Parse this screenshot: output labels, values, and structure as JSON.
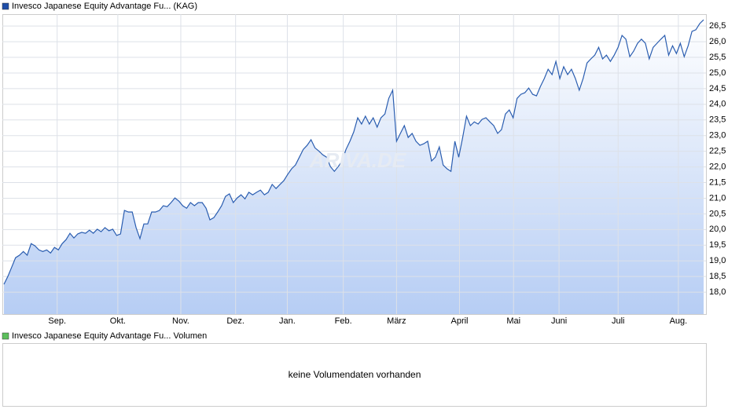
{
  "chart_data": {
    "type": "area-line",
    "legend": "Invesco Japanese Equity Advantage Fu... (KAG)",
    "watermark": "ARIVA.DE",
    "series": [
      {
        "name": "Invesco Japanese Equity Advantage Fu...",
        "color": "#2a5db0",
        "values": [
          18.25,
          18.5,
          18.8,
          19.1,
          19.18,
          19.3,
          19.18,
          19.55,
          19.48,
          19.35,
          19.3,
          19.35,
          19.25,
          19.43,
          19.35,
          19.55,
          19.68,
          19.88,
          19.73,
          19.86,
          19.91,
          19.88,
          19.98,
          19.88,
          20.01,
          19.93,
          20.06,
          19.96,
          20.01,
          19.81,
          19.86,
          20.61,
          20.56,
          20.56,
          20.06,
          19.71,
          20.18,
          20.18,
          20.56,
          20.56,
          20.61,
          20.76,
          20.73,
          20.86,
          21.01,
          20.91,
          20.76,
          20.68,
          20.86,
          20.76,
          20.86,
          20.86,
          20.68,
          20.31,
          20.38,
          20.56,
          20.76,
          21.06,
          21.14,
          20.86,
          21.01,
          21.11,
          20.98,
          21.19,
          21.11,
          21.19,
          21.26,
          21.11,
          21.19,
          21.44,
          21.31,
          21.44,
          21.56,
          21.76,
          21.94,
          22.06,
          22.31,
          22.56,
          22.69,
          22.87,
          22.61,
          22.51,
          22.39,
          22.31,
          22.01,
          21.86,
          22.01,
          22.19,
          22.56,
          22.82,
          23.12,
          23.57,
          23.37,
          23.62,
          23.37,
          23.57,
          23.27,
          23.57,
          23.69,
          24.19,
          24.45,
          22.82,
          23.07,
          23.32,
          22.94,
          23.07,
          22.82,
          22.69,
          22.74,
          22.82,
          22.19,
          22.31,
          22.64,
          22.06,
          21.94,
          21.86,
          22.82,
          22.31,
          22.94,
          23.62,
          23.32,
          23.44,
          23.37,
          23.52,
          23.57,
          23.44,
          23.32,
          23.07,
          23.19,
          23.69,
          23.82,
          23.57,
          24.19,
          24.32,
          24.37,
          24.52,
          24.32,
          24.27,
          24.57,
          24.82,
          25.12,
          24.95,
          25.37,
          24.82,
          25.2,
          24.95,
          25.12,
          24.82,
          24.45,
          24.82,
          25.32,
          25.45,
          25.57,
          25.82,
          25.45,
          25.57,
          25.37,
          25.57,
          25.82,
          26.2,
          26.08,
          25.52,
          25.7,
          25.95,
          26.08,
          25.95,
          25.45,
          25.82,
          25.95,
          26.08,
          26.2,
          25.57,
          25.87,
          25.62,
          25.95,
          25.52,
          25.87,
          26.33,
          26.38,
          26.58,
          26.7
        ]
      }
    ],
    "xlim": [
      -0.4,
      180.6
    ],
    "xticks": [
      {
        "value": 13.7,
        "label": "Sep."
      },
      {
        "value": 29.3,
        "label": "Okt."
      },
      {
        "value": 45.5,
        "label": "Nov."
      },
      {
        "value": 59.6,
        "label": "Dez."
      },
      {
        "value": 72.9,
        "label": "Jan."
      },
      {
        "value": 87.3,
        "label": "Feb."
      },
      {
        "value": 101,
        "label": "März"
      },
      {
        "value": 117.2,
        "label": "April"
      },
      {
        "value": 131.1,
        "label": "Mai"
      },
      {
        "value": 142.8,
        "label": "Juni"
      },
      {
        "value": 158,
        "label": "Juli"
      },
      {
        "value": 173.5,
        "label": "Aug."
      }
    ],
    "ylim": [
      17.3,
      26.88
    ],
    "yticks": [
      {
        "value": 18,
        "label": "18,0"
      },
      {
        "value": 18.5,
        "label": "18,5"
      },
      {
        "value": 19,
        "label": "19,0"
      },
      {
        "value": 19.5,
        "label": "19,5"
      },
      {
        "value": 20,
        "label": "20,0"
      },
      {
        "value": 20.5,
        "label": "20,5"
      },
      {
        "value": 21,
        "label": "21,0"
      },
      {
        "value": 21.5,
        "label": "21,5"
      },
      {
        "value": 22,
        "label": "22,0"
      },
      {
        "value": 22.5,
        "label": "22,5"
      },
      {
        "value": 23,
        "label": "23,0"
      },
      {
        "value": 23.5,
        "label": "23,5"
      },
      {
        "value": 24,
        "label": "24,0"
      },
      {
        "value": 24.5,
        "label": "24,5"
      },
      {
        "value": 25,
        "label": "25,0"
      },
      {
        "value": 25.5,
        "label": "25,5"
      },
      {
        "value": 26,
        "label": "26,0"
      },
      {
        "value": 26.5,
        "label": "26,5"
      }
    ],
    "grid": true
  },
  "volume_panel": {
    "legend": "Invesco Japanese Equity Advantage Fu... Volumen",
    "message": "keine Volumendaten vorhanden"
  }
}
